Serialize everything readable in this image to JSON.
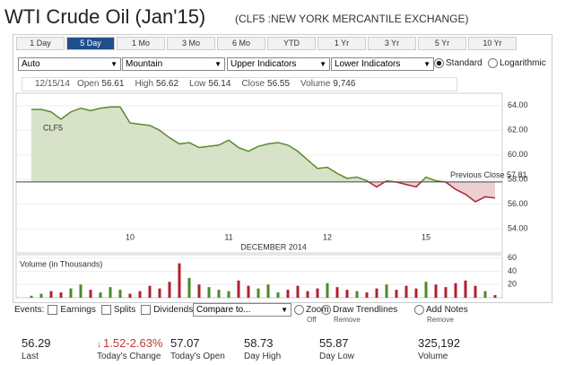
{
  "header": {
    "title": "WTI Crude Oil (Jan'15)",
    "subtitle": "(CLF5 :NEW YORK MERCANTILE EXCHANGE)"
  },
  "tabs": {
    "items": [
      "1 Day",
      "5 Day",
      "1 Mo",
      "3 Mo",
      "6 Mo",
      "YTD",
      "1 Yr",
      "3 Yr",
      "5 Yr",
      "10 Yr"
    ],
    "active": 1
  },
  "controls": {
    "selects": [
      "Auto",
      "Mountain",
      "Upper Indicators",
      "Lower Indicators"
    ],
    "radios": [
      "Standard",
      "Logarithmic"
    ],
    "checked": 0
  },
  "info": {
    "date": "12/15/14",
    "items": [
      [
        "Open",
        "56.61"
      ],
      [
        "High",
        "56.62"
      ],
      [
        "Low",
        "56.14"
      ],
      [
        "Close",
        "56.55"
      ],
      [
        "Volume",
        "9,746"
      ]
    ]
  },
  "chart_data": {
    "type": "area",
    "series_label": "CLF5",
    "x_label": "DECEMBER 2014",
    "categories": [
      null,
      null,
      null,
      null,
      null,
      null,
      null,
      null,
      null,
      null,
      "10",
      null,
      null,
      null,
      null,
      null,
      null,
      null,
      null,
      null,
      "11",
      null,
      null,
      null,
      null,
      null,
      null,
      null,
      null,
      null,
      "12",
      null,
      null,
      null,
      null,
      null,
      null,
      null,
      null,
      null,
      "15",
      null,
      null,
      null,
      null,
      null,
      null,
      null
    ],
    "values": [
      63.7,
      63.7,
      63.5,
      62.9,
      63.5,
      63.8,
      63.6,
      63.8,
      63.9,
      63.9,
      62.6,
      62.5,
      62.4,
      62.0,
      61.4,
      60.9,
      61.0,
      60.6,
      60.7,
      60.8,
      61.2,
      60.6,
      60.3,
      60.7,
      60.9,
      61.0,
      60.8,
      60.3,
      59.6,
      58.9,
      59.0,
      58.5,
      58.1,
      58.2,
      57.9,
      57.4,
      57.9,
      57.8,
      57.6,
      57.4,
      58.2,
      57.9,
      57.8,
      57.2,
      56.8,
      56.2,
      56.6,
      56.5
    ],
    "up_color": "#5b8a2e",
    "down_color": "#b02434",
    "up_fill": "#d7e2c8",
    "down_fill": "#ecd0d0",
    "ylim": [
      53.5,
      64.5
    ],
    "yticks": [
      {
        "value": 54,
        "label": "54.00"
      },
      {
        "value": 56,
        "label": "56.00"
      },
      {
        "value": 58,
        "label": "58.00"
      },
      {
        "value": 60,
        "label": "60.00"
      },
      {
        "value": 62,
        "label": "62.00"
      },
      {
        "value": 64,
        "label": "64.00"
      }
    ],
    "previous_close": 57.81,
    "previous_close_label": "Previous Close 57.81",
    "volume": {
      "title": "Volume (in Thousands)",
      "ylim": [
        0,
        65
      ],
      "yticks": [
        20,
        40,
        60
      ],
      "values": [
        3,
        6,
        10,
        8,
        14,
        20,
        12,
        8,
        16,
        12,
        6,
        10,
        18,
        14,
        24,
        52,
        30,
        20,
        16,
        12,
        10,
        26,
        18,
        14,
        20,
        8,
        12,
        18,
        10,
        14,
        22,
        16,
        12,
        10,
        8,
        14,
        20,
        12,
        18,
        14,
        24,
        20,
        16,
        22,
        26,
        18,
        10,
        4
      ],
      "colors": [
        "#4a8a2a",
        "#4a8a2a",
        "#b02030",
        "#b02030",
        "#4a8a2a",
        "#4a8a2a",
        "#b02030",
        "#4a8a2a",
        "#4a8a2a",
        "#4a8a2a",
        "#b02030",
        "#b02030",
        "#b02030",
        "#b02030",
        "#b02030",
        "#b02030",
        "#4a8a2a",
        "#b02030",
        "#4a8a2a",
        "#4a8a2a",
        "#4a8a2a",
        "#b02030",
        "#b02030",
        "#4a8a2a",
        "#4a8a2a",
        "#4a8a2a",
        "#b02030",
        "#b02030",
        "#b02030",
        "#b02030",
        "#4a8a2a",
        "#b02030",
        "#b02030",
        "#4a8a2a",
        "#b02030",
        "#b02030",
        "#4a8a2a",
        "#b02030",
        "#b02030",
        "#b02030",
        "#4a8a2a",
        "#b02030",
        "#b02030",
        "#b02030",
        "#b02030",
        "#b02030",
        "#4a8a2a",
        "#b02030"
      ]
    }
  },
  "toolbar": {
    "events": "Events:",
    "checks": [
      "Earnings",
      "Splits",
      "Dividends"
    ],
    "compare": "Compare to...",
    "tools": [
      [
        "Zoom",
        "Off"
      ],
      [
        "Draw Trendlines",
        "Remove"
      ],
      [
        "Add Notes",
        "Remove"
      ]
    ]
  },
  "stats": [
    [
      "56.29",
      "Last"
    ],
    [
      "1.52-2.63%",
      "Today's Change"
    ],
    [
      "57.07",
      "Today's Open"
    ],
    [
      "58.73",
      "Day High"
    ],
    [
      "55.87",
      "Day Low"
    ],
    [
      "325,192",
      "Volume"
    ]
  ]
}
